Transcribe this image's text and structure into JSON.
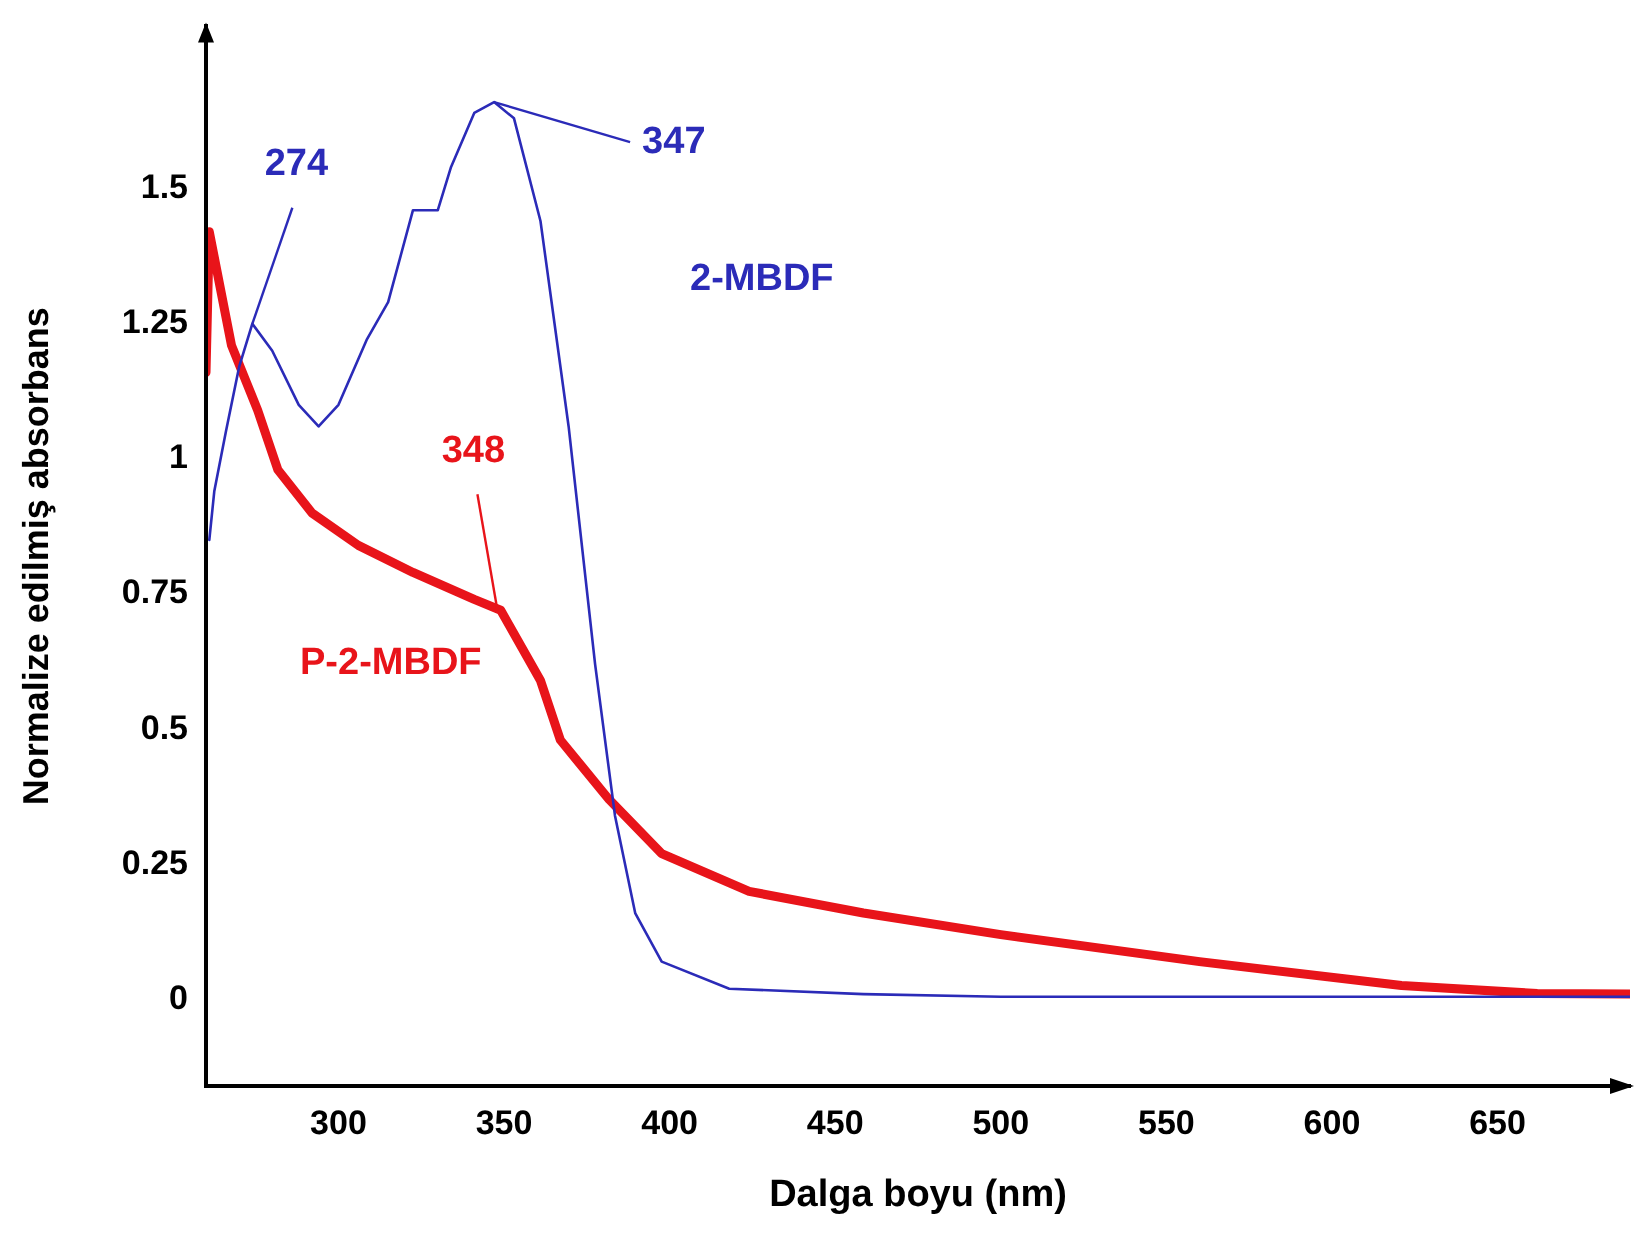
{
  "chart_data": {
    "type": "line",
    "xlabel": "Dalga boyu (nm)",
    "ylabel": "Normalize edilmiş absorbans",
    "xlim": [
      260,
      690
    ],
    "xticks": [
      300,
      350,
      400,
      450,
      500,
      550,
      600,
      650
    ],
    "ylim": [
      -0.16,
      1.8
    ],
    "yticks": [
      0,
      0.25,
      0.5,
      0.75,
      1,
      1.25,
      1.5
    ],
    "grid": false,
    "legend": false,
    "marker": "none",
    "line_style": "solid",
    "series": [
      {
        "name": "2-MBDF",
        "color": "#2b2bb8",
        "x": [
          261,
          262.5,
          266,
          270,
          274,
          280,
          288,
          294,
          300,
          308.5,
          315,
          322.5,
          330,
          334,
          341,
          347,
          353,
          361,
          369.5,
          377.5,
          383.5,
          389.6,
          397.6,
          418,
          458.5,
          500,
          550,
          600,
          650,
          690
        ],
        "values": [
          0.85,
          0.94,
          1.05,
          1.17,
          1.25,
          1.2,
          1.1,
          1.06,
          1.1,
          1.22,
          1.29,
          1.46,
          1.46,
          1.54,
          1.64,
          1.66,
          1.63,
          1.44,
          1.06,
          0.62,
          0.34,
          0.16,
          0.07,
          0.02,
          0.01,
          0.005,
          0.005,
          0.005,
          0.005,
          0.005
        ]
      },
      {
        "name": "P-2-MBDF",
        "color": "#e8141a",
        "x": [
          260,
          261,
          267.7,
          275.6,
          281.7,
          292,
          306,
          322.5,
          341,
          349,
          361,
          367,
          381.7,
          397.6,
          424,
          458.5,
          500,
          560,
          621,
          662,
          690
        ],
        "values": [
          1.16,
          1.42,
          1.21,
          1.09,
          0.98,
          0.9,
          0.84,
          0.79,
          0.74,
          0.72,
          0.59,
          0.48,
          0.37,
          0.27,
          0.2,
          0.16,
          0.12,
          0.07,
          0.026,
          0.011,
          0.01
        ]
      }
    ],
    "annotations": [
      {
        "text": "274",
        "x": 274,
        "y": 1.25
      },
      {
        "text": "347",
        "x": 347,
        "y": 1.66
      },
      {
        "text": "348",
        "x": 348,
        "y": 0.72
      }
    ]
  }
}
